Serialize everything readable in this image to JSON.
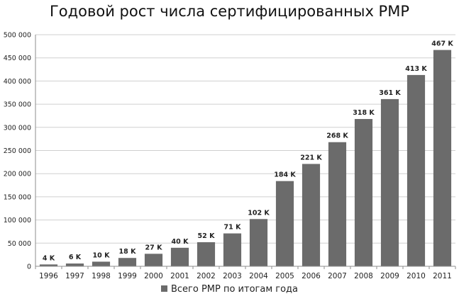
{
  "chart_data": {
    "type": "bar",
    "title": "Годовой рост числа сертифицированных PMP",
    "xlabel": "",
    "ylabel": "",
    "categories": [
      "1996",
      "1997",
      "1998",
      "1999",
      "2000",
      "2001",
      "2002",
      "2003",
      "2004",
      "2005",
      "2006",
      "2007",
      "2008",
      "2009",
      "2010",
      "2011"
    ],
    "series": [
      {
        "name": "Всего PMP по итогам года",
        "values": [
          4000,
          6000,
          10000,
          18000,
          27000,
          40000,
          52000,
          71000,
          102000,
          184000,
          221000,
          268000,
          318000,
          361000,
          413000,
          467000
        ],
        "data_labels": [
          "4 K",
          "6 K",
          "10 K",
          "18 K",
          "27 K",
          "40 K",
          "52 K",
          "71 K",
          "102 K",
          "184 K",
          "221 K",
          "268 K",
          "318 K",
          "361 K",
          "413 K",
          "467 K"
        ]
      }
    ],
    "ylim": [
      0,
      500000
    ],
    "yticks": [
      0,
      50000,
      100000,
      150000,
      200000,
      250000,
      300000,
      350000,
      400000,
      450000,
      500000
    ],
    "ytick_labels": [
      "0",
      "50 000",
      "100 000",
      "150 000",
      "200 000",
      "250 000",
      "300 000",
      "350 000",
      "400 000",
      "450 000",
      "500 000"
    ],
    "grid": true,
    "legend_position": "bottom-center",
    "colors": {
      "bar": "#6b6b6b",
      "grid": "#cfcfcf",
      "axis": "#8c8c8c",
      "text": "#222222"
    }
  }
}
